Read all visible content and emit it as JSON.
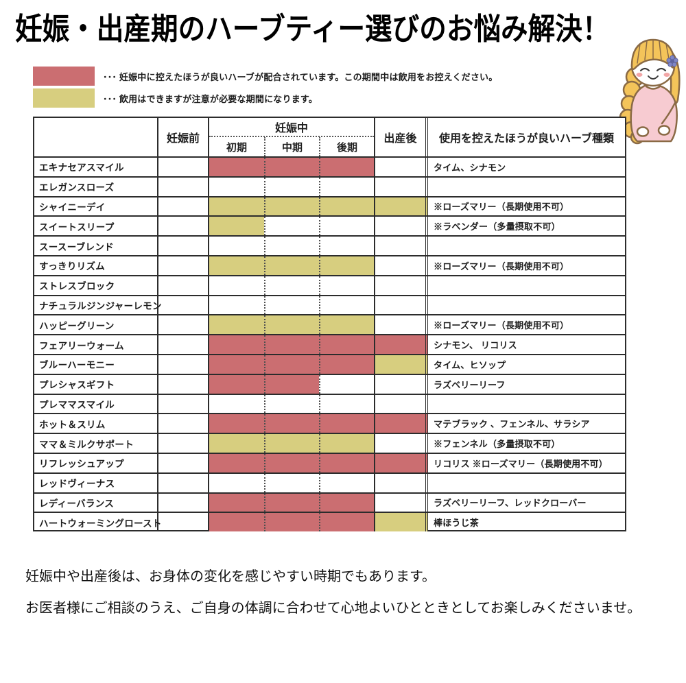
{
  "page": {
    "title": "妊娠・出産期のハーブティー選びのお悩み解決！",
    "footer_lines": [
      "妊娠中や出産後は、お身体の変化を感じやすい時期でもあります。",
      "お医者様にご相談のうえ、ご自身の体調に合わせて心地よいひとときとしてお楽しみくださいませ。"
    ]
  },
  "legend": {
    "avoid": {
      "color": "#cb6e71",
      "text": "･･･ 妊娠中に控えたほうが良いハーブが配合されています。この期間中は飲用をお控えください。"
    },
    "caution": {
      "color": "#d7ce7f",
      "text": "･･･ 飲用はできますが注意が必要な期間になります。"
    }
  },
  "illustration": {
    "name": "pregnant-woman",
    "hair_color": "#f4c45a",
    "outline_color": "#8a6a45",
    "shirt_color": "#f7cbd1",
    "blush_color": "#f2a6a6",
    "flower_color": "#7f86c6"
  },
  "table": {
    "headers": {
      "pre": "妊娠前",
      "during": "妊娠中",
      "during_sub": [
        "初期",
        "中期",
        "後期"
      ],
      "post": "出産後",
      "herbs": "使用を控えたほうが良いハーブ種類"
    },
    "rows": [
      {
        "name": "エキナセアスマイル",
        "periods": [
          "",
          "red",
          "red",
          "red",
          ""
        ],
        "herbs": "タイム、シナモン"
      },
      {
        "name": "エレガンスローズ",
        "periods": [
          "",
          "",
          "",
          "",
          ""
        ],
        "herbs": ""
      },
      {
        "name": "シャイニーデイ",
        "periods": [
          "",
          "yellow",
          "yellow",
          "yellow",
          "yellow"
        ],
        "herbs": "※ローズマリー（長期使用不可）"
      },
      {
        "name": "スイートスリープ",
        "periods": [
          "",
          "yellow",
          "",
          "",
          ""
        ],
        "herbs": "※ラベンダー（多量摂取不可）"
      },
      {
        "name": "スースーブレンド",
        "periods": [
          "",
          "",
          "",
          "",
          ""
        ],
        "herbs": ""
      },
      {
        "name": "すっきりリズム",
        "periods": [
          "",
          "yellow",
          "yellow",
          "yellow",
          ""
        ],
        "herbs": "※ローズマリー（長期使用不可）"
      },
      {
        "name": "ストレスブロック",
        "periods": [
          "",
          "",
          "",
          "",
          ""
        ],
        "herbs": ""
      },
      {
        "name": "ナチュラルジンジャーレモン",
        "periods": [
          "",
          "",
          "",
          "",
          ""
        ],
        "herbs": ""
      },
      {
        "name": "ハッピーグリーン",
        "periods": [
          "",
          "yellow",
          "yellow",
          "yellow",
          ""
        ],
        "herbs": "※ローズマリー（長期使用不可）"
      },
      {
        "name": "フェアリーウォーム",
        "periods": [
          "",
          "red",
          "red",
          "red",
          "red"
        ],
        "herbs": "シナモン、 リコリス"
      },
      {
        "name": "ブルーハーモニー",
        "periods": [
          "",
          "red",
          "red",
          "red",
          "yellow"
        ],
        "herbs": "タイム、ヒソップ"
      },
      {
        "name": "プレシャスギフト",
        "periods": [
          "",
          "red",
          "red",
          "",
          ""
        ],
        "herbs": "ラズベリーリーフ"
      },
      {
        "name": "プレママスマイル",
        "periods": [
          "",
          "",
          "",
          "",
          ""
        ],
        "herbs": ""
      },
      {
        "name": "ホット＆スリム",
        "periods": [
          "",
          "red",
          "red",
          "red",
          "red"
        ],
        "herbs": "マテブラック 、フェンネル、サラシア"
      },
      {
        "name": "ママ＆ミルクサポート",
        "periods": [
          "",
          "yellow",
          "yellow",
          "yellow",
          ""
        ],
        "herbs": "※フェンネル（多量摂取不可）"
      },
      {
        "name": "リフレッシュアップ",
        "periods": [
          "",
          "red",
          "red",
          "red",
          "red"
        ],
        "herbs": "リコリス ※ローズマリー（長期使用不可）"
      },
      {
        "name": "レッドヴィーナス",
        "periods": [
          "",
          "",
          "",
          "",
          ""
        ],
        "herbs": ""
      },
      {
        "name": "レディーバランス",
        "periods": [
          "",
          "red",
          "red",
          "red",
          ""
        ],
        "herbs": "ラズベリーリーフ、レッドクローバー"
      },
      {
        "name": "ハートウォーミングロースト",
        "periods": [
          "",
          "red",
          "red",
          "red",
          "yellow"
        ],
        "herbs": "棒ほうじ茶"
      }
    ]
  }
}
